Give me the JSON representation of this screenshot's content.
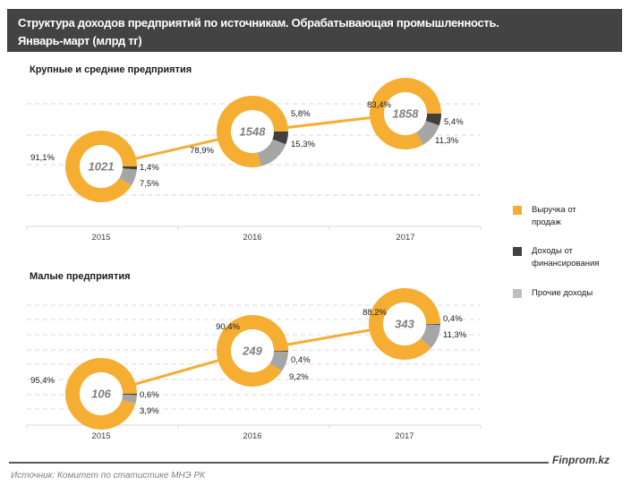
{
  "header": {
    "title_line1": "Структура доходов предприятий по источникам. Обрабатывающая промышленность.",
    "title_line2": "Январь-март (млрд тг)"
  },
  "colors": {
    "sales": "#F5AD32",
    "financing": "#404040",
    "other": "#A6A6A6",
    "line": "#F5AD32",
    "grid": "#D9D9D9",
    "axis": "#D9D9D9",
    "header_bg": "#434343"
  },
  "legend": {
    "items": [
      {
        "key": "sales",
        "label_line1": "Выручка от",
        "label_line2": "продаж",
        "color": "#F5AD32"
      },
      {
        "key": "financing",
        "label_line1": "Доходы от",
        "label_line2": "финансирования",
        "color": "#404040"
      },
      {
        "key": "other",
        "label_line1": "Прочие доходы",
        "label_line2": "",
        "color": "#BFBFBF"
      }
    ]
  },
  "chart_data": [
    {
      "type": "line",
      "subtype": "line-with-donut-markers",
      "title": "Крупные и средние предприятия",
      "categories": [
        "2015",
        "2016",
        "2017"
      ],
      "total_label": "млрд тг",
      "totals": [
        1021,
        1548,
        1858
      ],
      "series": [
        {
          "name": "Выручка от продаж",
          "key": "sales",
          "values_pct": [
            "91,1%",
            "78,9%",
            "83,4%"
          ],
          "values": [
            91.1,
            78.9,
            83.4
          ]
        },
        {
          "name": "Доходы от финансирования",
          "key": "financing",
          "values_pct": [
            "1,4%",
            "5,8%",
            "5,4%"
          ],
          "values": [
            1.4,
            5.8,
            5.4
          ]
        },
        {
          "name": "Прочие доходы",
          "key": "other",
          "values_pct": [
            "7,5%",
            "15,3%",
            "11,3%"
          ],
          "values": [
            7.5,
            15.3,
            11.3
          ]
        }
      ],
      "grid": true,
      "y_axis_visible": false,
      "y_range_estimate": [
        0,
        2500
      ]
    },
    {
      "type": "line",
      "subtype": "line-with-donut-markers",
      "title": "Малые предприятия",
      "categories": [
        "2015",
        "2016",
        "2017"
      ],
      "total_label": "млрд тг",
      "totals": [
        106,
        249,
        343
      ],
      "series": [
        {
          "name": "Выручка от продаж",
          "key": "sales",
          "values_pct": [
            "95,4%",
            "90,4%",
            "88,2%"
          ],
          "values": [
            95.4,
            90.4,
            88.2
          ]
        },
        {
          "name": "Доходы от финансирования",
          "key": "financing",
          "values_pct": [
            "0,6%",
            "0,4%",
            "0,4%"
          ],
          "values": [
            0.6,
            0.4,
            0.4
          ]
        },
        {
          "name": "Прочие доходы",
          "key": "other",
          "values_pct": [
            "3,9%",
            "9,2%",
            "11,3%"
          ],
          "values": [
            3.9,
            9.2,
            11.3
          ]
        }
      ],
      "grid": true,
      "y_axis_visible": false,
      "y_range_estimate": [
        0,
        400
      ]
    }
  ],
  "footer": {
    "brand": "Finprom.kz",
    "source": "Источник:  Комитет по статистике МНЭ РК"
  }
}
